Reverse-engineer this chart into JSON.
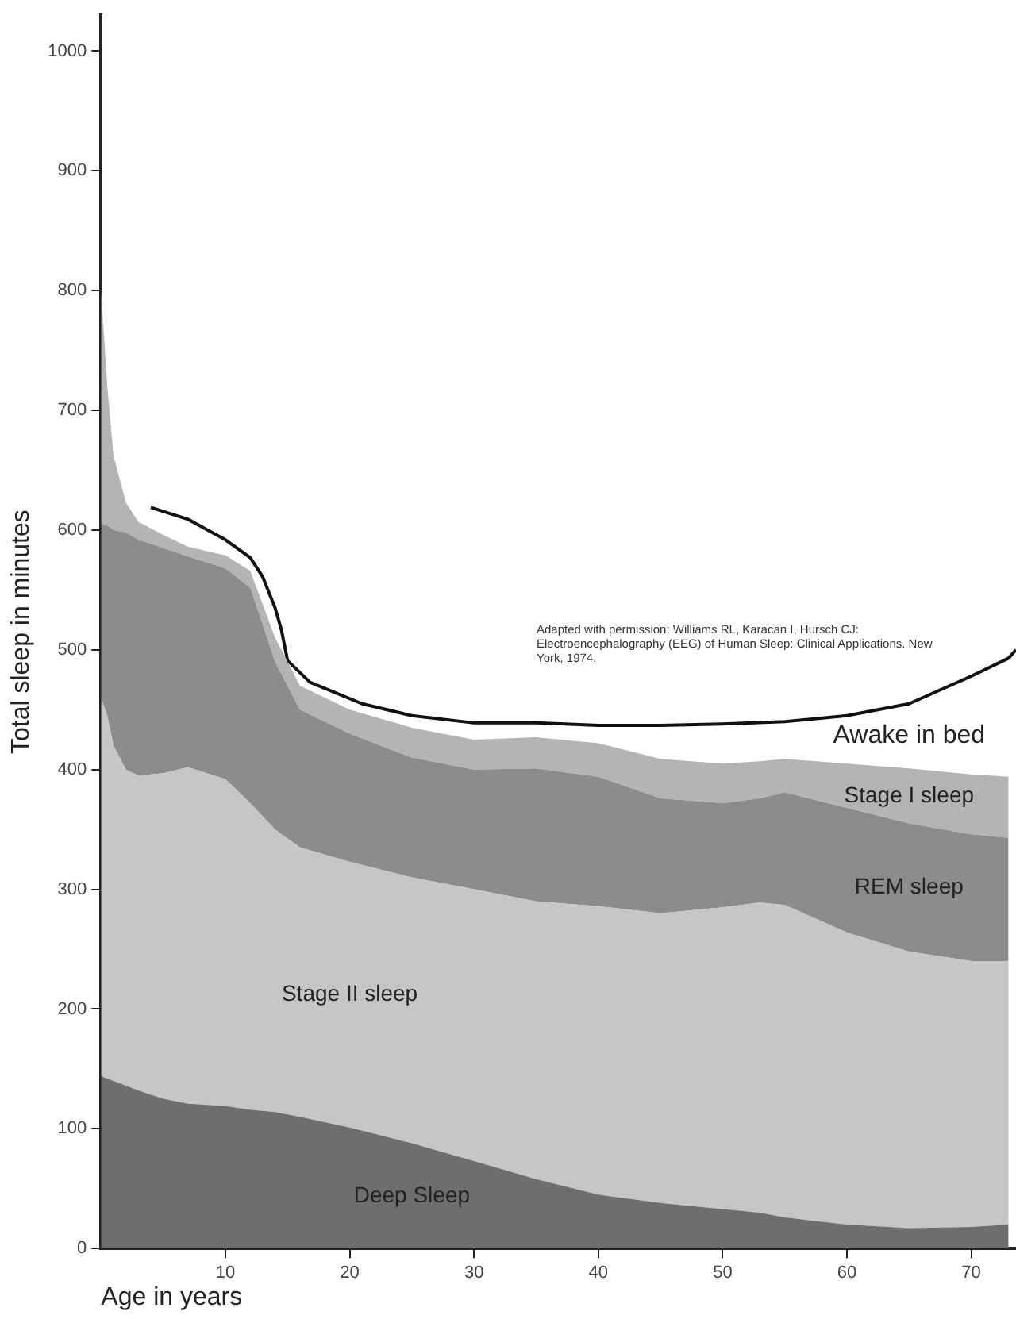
{
  "chart_data": {
    "type": "area",
    "stacked": true,
    "xlabel": "Age in years",
    "ylabel": "Total sleep in minutes",
    "x": [
      0,
      0.5,
      1,
      2,
      3,
      5,
      7,
      10,
      12,
      14,
      16,
      20,
      25,
      30,
      35,
      40,
      45,
      50,
      53,
      55,
      60,
      65,
      70,
      73
    ],
    "series": [
      {
        "name": "Deep Sleep",
        "color": "#6e6e6e",
        "values": [
          144,
          142,
          140,
          136,
          132,
          125,
          121,
          119,
          116,
          114,
          110,
          101,
          88,
          73,
          58,
          45,
          38,
          33,
          30,
          26,
          20,
          17,
          18,
          20
        ]
      },
      {
        "name": "Stage II sleep",
        "color": "#c6c6c6",
        "values": [
          316,
          303,
          280,
          264,
          263,
          272,
          281,
          273,
          256,
          236,
          225,
          222,
          222,
          227,
          232,
          241,
          242,
          252,
          259,
          261,
          244,
          231,
          222,
          220
        ]
      },
      {
        "name": "REM sleep",
        "color": "#8c8c8c",
        "values": [
          145,
          159,
          180,
          198,
          197,
          188,
          176,
          176,
          180,
          140,
          115,
          107,
          100,
          100,
          111,
          108,
          96,
          87,
          87,
          94,
          104,
          107,
          106,
          103
        ]
      },
      {
        "name": "Stage I sleep",
        "color": "#b4b4b4",
        "values": [
          195,
          116,
          62,
          25,
          15,
          11,
          8,
          11,
          14,
          20,
          20,
          20,
          25,
          25,
          26,
          28,
          33,
          33,
          31,
          28,
          37,
          46,
          50,
          51
        ]
      },
      {
        "name": "Awake in bed",
        "type": "line",
        "color": "#111111",
        "x": [
          4,
          7,
          10,
          12,
          13,
          14,
          14.5,
          15,
          16.8,
          21,
          25,
          30,
          35,
          40,
          45,
          50,
          55,
          60,
          65,
          70,
          73,
          73.6
        ],
        "values": [
          619,
          609,
          592,
          577,
          561,
          535,
          517,
          491,
          473,
          455,
          445,
          439,
          439,
          437,
          437,
          438,
          440,
          445,
          455,
          478,
          493,
          500
        ]
      }
    ],
    "xlim": [
      0,
      73.6
    ],
    "xticks": [
      10,
      20,
      30,
      40,
      50,
      60,
      70
    ],
    "ylim": [
      0,
      1030
    ],
    "yticks": [
      0,
      100,
      200,
      300,
      400,
      500,
      600,
      700,
      800,
      900,
      1000
    ],
    "grid": false,
    "legend": false,
    "annotations": [
      "Adapted with permission: Williams RL, Karacan I, Hursch CJ: Electroencephalography (EEG) of Human Sleep: Clinical Applications. New York, 1974."
    ]
  }
}
